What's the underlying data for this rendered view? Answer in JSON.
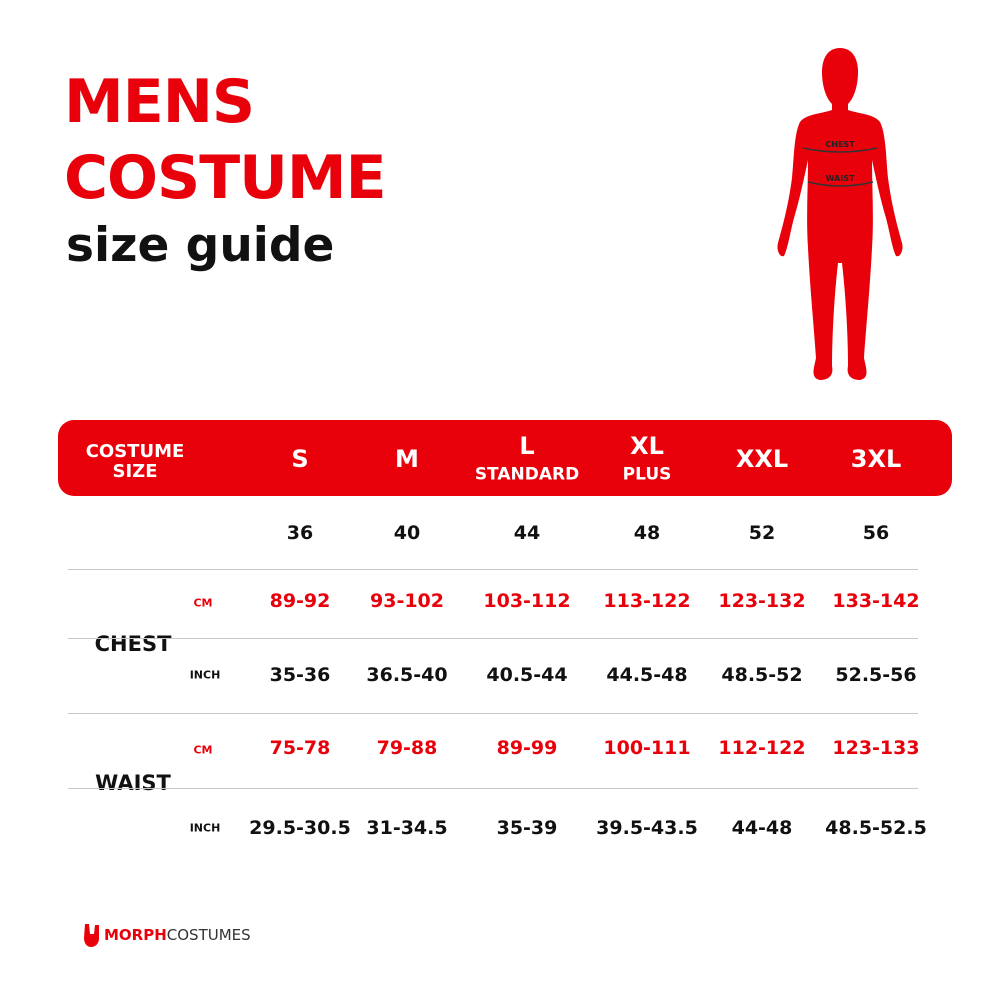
{
  "title": {
    "line1": "MENS",
    "line2": "COSTUME",
    "line3": "size guide"
  },
  "figure": {
    "chest_label": "CHEST",
    "waist_label": "WAIST"
  },
  "colors": {
    "accent": "#e8000b",
    "text": "#111111"
  },
  "table": {
    "header": {
      "first": [
        "COSTUME",
        "SIZE"
      ],
      "sizes": [
        {
          "label": "S",
          "sub": ""
        },
        {
          "label": "M",
          "sub": ""
        },
        {
          "label": "L",
          "sub": "STANDARD"
        },
        {
          "label": "XL",
          "sub": "PLUS"
        },
        {
          "label": "XXL",
          "sub": ""
        },
        {
          "label": "3XL",
          "sub": ""
        }
      ]
    },
    "size_numbers": [
      "36",
      "40",
      "44",
      "48",
      "52",
      "56"
    ],
    "rows": [
      {
        "label": "CHEST",
        "cm_label": "CM",
        "cm": [
          "89-92",
          "93-102",
          "103-112",
          "113-122",
          "123-132",
          "133-142"
        ],
        "inch_label": "INCH",
        "inch": [
          "35-36",
          "36.5-40",
          "40.5-44",
          "44.5-48",
          "48.5-52",
          "52.5-56"
        ]
      },
      {
        "label": "WAIST",
        "cm_label": "CM",
        "cm": [
          "75-78",
          "79-88",
          "89-99",
          "100-111",
          "112-122",
          "123-133"
        ],
        "inch_label": "INCH",
        "inch": [
          "29.5-30.5",
          "31-34.5",
          "35-39",
          "39.5-43.5",
          "44-48",
          "48.5-52.5"
        ]
      }
    ]
  },
  "logo": {
    "part1": "MORPH",
    "part2": "COSTUMES",
    "icon": "hand-horns-icon"
  }
}
